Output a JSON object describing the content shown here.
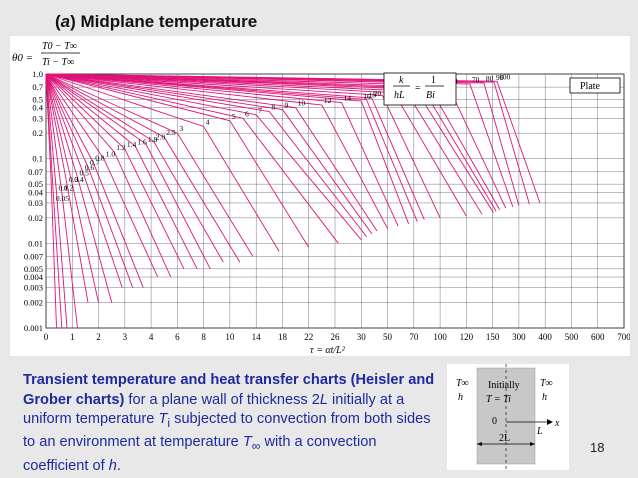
{
  "slide": {
    "title_paren_open": "(",
    "title_letter": "a",
    "title_rest": ") Midplane temperature",
    "page_number": "18"
  },
  "caption": {
    "bold_part": "Transient temperature and heat transfer charts (Heisler and Grober charts)",
    "part1": " for a plane wall of thickness 2",
    "L": "L",
    "part2": " initially at a uniform temperature ",
    "Ti": "T",
    "Ti_sub": "i",
    "part3": " subjected to convection from both sides to an environment at temperature ",
    "Tinf": "T",
    "Tinf_sub": "∞",
    "part4": " with a convection coefficient of ",
    "h": "h",
    "end": "."
  },
  "wall_diagram": {
    "left_T": "T∞",
    "left_h": "h",
    "right_T": "T∞",
    "right_h": "h",
    "center_label": "Initially",
    "center_eq": "T = Ti",
    "zero": "0",
    "L": "L",
    "x": "x",
    "width": "2L"
  },
  "chart_data": {
    "type": "line",
    "title": "",
    "ylabel_lhs": "θ0 =",
    "ylabel_num": "T0 − T∞",
    "ylabel_den": "Ti − T∞",
    "xlabel": "τ = αt/L²",
    "y_scale": "log",
    "ylim": [
      0.001,
      1.0
    ],
    "y_ticks": [
      "1.0",
      "0.7",
      "0.5",
      "0.4",
      "0.3",
      "0.2",
      "0.1",
      "0.07",
      "0.05",
      "0.04",
      "0.03",
      "0.02",
      "0.01",
      "0.007",
      "0.005",
      "0.004",
      "0.003",
      "0.002",
      "0.001"
    ],
    "x_ticks": [
      "0",
      "1",
      "2",
      "3",
      "4",
      "6",
      "8",
      "10",
      "14",
      "18",
      "22",
      "26",
      "30",
      "50",
      "70",
      "100",
      "120",
      "150",
      "300",
      "400",
      "500",
      "600",
      "700"
    ],
    "legend_text": "Plate",
    "param_box_lhs": "k",
    "param_box_lhs_den": "hL",
    "param_box_rhs_num": "1",
    "param_box_rhs_den": "Bi",
    "grid": true,
    "line_color": "#e0127a",
    "curve_labels": [
      "100",
      "90",
      "80",
      "70",
      "60",
      "50",
      "45",
      "40",
      "35",
      "30",
      "25",
      "20",
      "18",
      "16",
      "14",
      "12",
      "10",
      "9",
      "8",
      "7",
      "6",
      "5",
      "4",
      "3",
      "2.5",
      "2.0",
      "1.8",
      "1.6",
      "1.4",
      "1.2",
      "1.0",
      "0.8",
      "0.7",
      "0.6",
      "0.5",
      "0.4",
      "0.3",
      "0.2",
      "0.1",
      "0.05",
      "0"
    ],
    "series": [
      {
        "name": "0",
        "x": [
          0,
          0.2,
          0.4
        ],
        "y": [
          1.0,
          0.05,
          0.001
        ]
      },
      {
        "name": "0.05",
        "x": [
          0,
          0.3,
          0.6
        ],
        "y": [
          1.0,
          0.03,
          0.001
        ]
      },
      {
        "name": "0.1",
        "x": [
          0,
          0.4,
          0.8
        ],
        "y": [
          1.0,
          0.04,
          0.001
        ]
      },
      {
        "name": "0.2",
        "x": [
          0,
          0.6,
          1.2
        ],
        "y": [
          1.0,
          0.04,
          0.001
        ]
      },
      {
        "name": "0.3",
        "x": [
          0,
          0.8,
          1.6
        ],
        "y": [
          1.0,
          0.05,
          0.002
        ]
      },
      {
        "name": "0.4",
        "x": [
          0,
          1.0,
          2.0
        ],
        "y": [
          1.0,
          0.05,
          0.002
        ]
      },
      {
        "name": "0.5",
        "x": [
          0,
          1.2,
          2.5
        ],
        "y": [
          1.0,
          0.06,
          0.002
        ]
      },
      {
        "name": "0.6",
        "x": [
          0,
          1.4,
          2.9
        ],
        "y": [
          1.0,
          0.07,
          0.003
        ]
      },
      {
        "name": "0.7",
        "x": [
          0,
          1.6,
          3.3
        ],
        "y": [
          1.0,
          0.08,
          0.003
        ]
      },
      {
        "name": "0.8",
        "x": [
          0,
          1.8,
          3.7
        ],
        "y": [
          1.0,
          0.09,
          0.003
        ]
      },
      {
        "name": "1.0",
        "x": [
          0,
          2.2,
          4.5
        ],
        "y": [
          1.0,
          0.1,
          0.004
        ]
      },
      {
        "name": "1.2",
        "x": [
          0,
          2.6,
          5.5
        ],
        "y": [
          1.0,
          0.12,
          0.004
        ]
      },
      {
        "name": "1.4",
        "x": [
          0,
          3.0,
          6.5
        ],
        "y": [
          1.0,
          0.13,
          0.005
        ]
      },
      {
        "name": "1.6",
        "x": [
          0,
          3.4,
          7.5
        ],
        "y": [
          1.0,
          0.14,
          0.005
        ]
      },
      {
        "name": "1.8",
        "x": [
          0,
          3.8,
          8.5
        ],
        "y": [
          1.0,
          0.15,
          0.005
        ]
      },
      {
        "name": "2.0",
        "x": [
          0,
          4.2,
          9.5
        ],
        "y": [
          1.0,
          0.16,
          0.006
        ]
      },
      {
        "name": "2.5",
        "x": [
          0,
          5.0,
          11.5
        ],
        "y": [
          1.0,
          0.18,
          0.006
        ]
      },
      {
        "name": "3",
        "x": [
          0,
          6.0,
          13.5
        ],
        "y": [
          1.0,
          0.2,
          0.007
        ]
      },
      {
        "name": "4",
        "x": [
          0,
          8.0,
          17.5
        ],
        "y": [
          1.0,
          0.24,
          0.008
        ]
      },
      {
        "name": "5",
        "x": [
          0,
          10.0,
          22.0
        ],
        "y": [
          1.0,
          0.28,
          0.009
        ]
      },
      {
        "name": "6",
        "x": [
          0,
          12.0,
          26.5
        ],
        "y": [
          1.0,
          0.3,
          0.01
        ]
      },
      {
        "name": "7",
        "x": [
          0,
          14.0,
          30.0
        ],
        "y": [
          1.0,
          0.33,
          0.011
        ]
      },
      {
        "name": "8",
        "x": [
          0,
          16.0,
          34.0
        ],
        "y": [
          1.0,
          0.36,
          0.012
        ]
      },
      {
        "name": "9",
        "x": [
          0,
          18.0,
          38.0
        ],
        "y": [
          1.0,
          0.38,
          0.013
        ]
      },
      {
        "name": "10",
        "x": [
          0,
          20.0,
          42.0
        ],
        "y": [
          1.0,
          0.4,
          0.014
        ]
      },
      {
        "name": "12",
        "x": [
          0,
          24.0,
          50.0
        ],
        "y": [
          1.0,
          0.43,
          0.015
        ]
      },
      {
        "name": "14",
        "x": [
          0,
          27.0,
          58.0
        ],
        "y": [
          1.0,
          0.46,
          0.016
        ]
      },
      {
        "name": "16",
        "x": [
          0,
          30.0,
          66.0
        ],
        "y": [
          1.0,
          0.48,
          0.017
        ]
      },
      {
        "name": "18",
        "x": [
          0,
          34.0,
          74.0
        ],
        "y": [
          1.0,
          0.5,
          0.018
        ]
      },
      {
        "name": "20",
        "x": [
          0,
          38.0,
          82.0
        ],
        "y": [
          1.0,
          0.52,
          0.019
        ]
      },
      {
        "name": "25",
        "x": [
          0,
          46.0,
          100.0
        ],
        "y": [
          1.0,
          0.56,
          0.02
        ]
      },
      {
        "name": "30",
        "x": [
          0,
          55.0,
          120.0
        ],
        "y": [
          1.0,
          0.6,
          0.021
        ]
      },
      {
        "name": "35",
        "x": [
          0,
          64.0,
          138.0
        ],
        "y": [
          1.0,
          0.63,
          0.022
        ]
      },
      {
        "name": "40",
        "x": [
          0,
          72.0,
          155.0
        ],
        "y": [
          1.0,
          0.66,
          0.023
        ]
      },
      {
        "name": "45",
        "x": [
          0,
          80.0,
          170.0
        ],
        "y": [
          1.0,
          0.68,
          0.024
        ]
      },
      {
        "name": "50",
        "x": [
          0,
          88.0,
          190.0
        ],
        "y": [
          1.0,
          0.7,
          0.025
        ]
      },
      {
        "name": "60",
        "x": [
          0,
          106.0,
          225.0
        ],
        "y": [
          1.0,
          0.73,
          0.026
        ]
      },
      {
        "name": "70",
        "x": [
          0,
          124.0,
          265.0
        ],
        "y": [
          1.0,
          0.76,
          0.027
        ]
      },
      {
        "name": "80",
        "x": [
          0,
          140.0,
          300.0
        ],
        "y": [
          1.0,
          0.78,
          0.028
        ]
      },
      {
        "name": "90",
        "x": [
          0,
          158.0,
          340.0
        ],
        "y": [
          1.0,
          0.8,
          0.029
        ]
      },
      {
        "name": "100",
        "x": [
          0,
          175.0,
          380.0
        ],
        "y": [
          1.0,
          0.82,
          0.03
        ]
      }
    ]
  }
}
